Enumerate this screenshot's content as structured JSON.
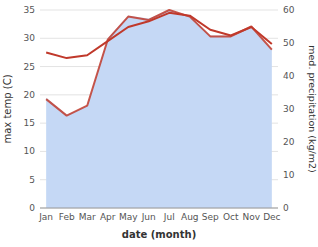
{
  "chart_data": {
    "type": "line",
    "xlabel": "date (month)",
    "ylabel": "max temp (C)",
    "y2label": "med. precipitation (kg/m2)",
    "categories": [
      "Jan",
      "Feb",
      "Mar",
      "Apr",
      "May",
      "Jun",
      "Jul",
      "Aug",
      "Sep",
      "Oct",
      "Nov",
      "Dec"
    ],
    "series": [
      {
        "type": "area",
        "color": "#c5d8f5",
        "values": [
          19.5,
          16.5,
          18.0,
          30.0,
          34.0,
          33.5,
          35.0,
          34.0,
          30.5,
          30.5,
          32.0,
          28.0
        ]
      },
      {
        "type": "line",
        "color": "#c0392b",
        "values": [
          27.5,
          26.5,
          27.0,
          29.5,
          32.0,
          33.0,
          34.5,
          34.0,
          31.5,
          30.5,
          32.0,
          29.0
        ]
      },
      {
        "type": "line",
        "color": "#c0392b",
        "axis": "y2",
        "values": [
          33,
          28,
          31,
          51,
          58,
          57,
          60,
          58,
          52,
          52,
          55,
          48
        ]
      }
    ],
    "ylim": [
      0,
      35
    ],
    "yticks": [
      0,
      5,
      10,
      15,
      20,
      25,
      30,
      35
    ],
    "y2lim": [
      0,
      60
    ],
    "y2ticks": [
      0,
      10,
      20,
      30,
      40,
      50,
      60
    ],
    "grid": true
  }
}
